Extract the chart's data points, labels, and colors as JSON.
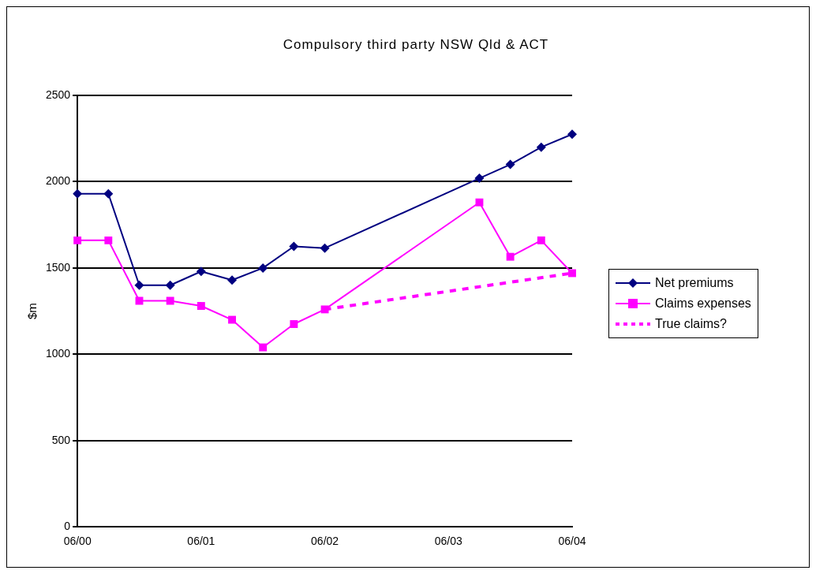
{
  "chart_data": {
    "type": "line",
    "title": "Compulsory third party NSW Qld & ACT",
    "ylabel": "$m",
    "categories": [
      "06/00",
      null,
      null,
      null,
      "06/01",
      null,
      null,
      null,
      "06/02",
      null,
      null,
      null,
      "06/03",
      null,
      null,
      null,
      "06/04"
    ],
    "ylim": [
      0,
      2500
    ],
    "yticks": [
      0,
      500,
      1000,
      1500,
      2000,
      2500
    ],
    "grid": "y",
    "legend": "right",
    "series": [
      {
        "name": "Net premiums",
        "color": "#000080",
        "marker": "diamond",
        "line_style": "solid",
        "values": [
          1930,
          1930,
          1400,
          1400,
          1480,
          1430,
          1500,
          1625,
          1615,
          null,
          null,
          null,
          null,
          2020,
          2100,
          2200,
          2275
        ]
      },
      {
        "name": "Claims expenses",
        "color": "#ff00ff",
        "marker": "square",
        "line_style": "solid",
        "values": [
          1660,
          1660,
          1310,
          1310,
          1280,
          1200,
          1040,
          1175,
          1260,
          null,
          null,
          null,
          null,
          1880,
          1565,
          1660,
          1470
        ]
      },
      {
        "name": "True claims?",
        "color": "#ff00ff",
        "line_style": "dashed",
        "values": [
          null,
          null,
          null,
          null,
          null,
          null,
          null,
          null,
          1260,
          null,
          null,
          null,
          null,
          null,
          null,
          null,
          1470
        ]
      }
    ]
  }
}
